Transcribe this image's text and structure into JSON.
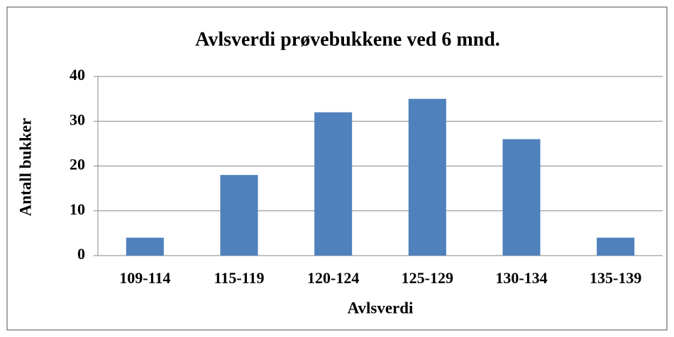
{
  "chart_data": {
    "type": "bar",
    "title": "Avlsverdi prøvebukkene ved 6 mnd.",
    "x_label": "Avlsverdi",
    "y_label": "Antall bukker",
    "categories": [
      "109-114",
      "115-119",
      "120-124",
      "125-129",
      "130-134",
      "135-139"
    ],
    "values": [
      4,
      18,
      32,
      35,
      26,
      4
    ],
    "color": "#4f81bd",
    "ylim": [
      0,
      40
    ],
    "yticks": [
      0,
      10,
      20,
      30,
      40
    ],
    "grid": true
  }
}
